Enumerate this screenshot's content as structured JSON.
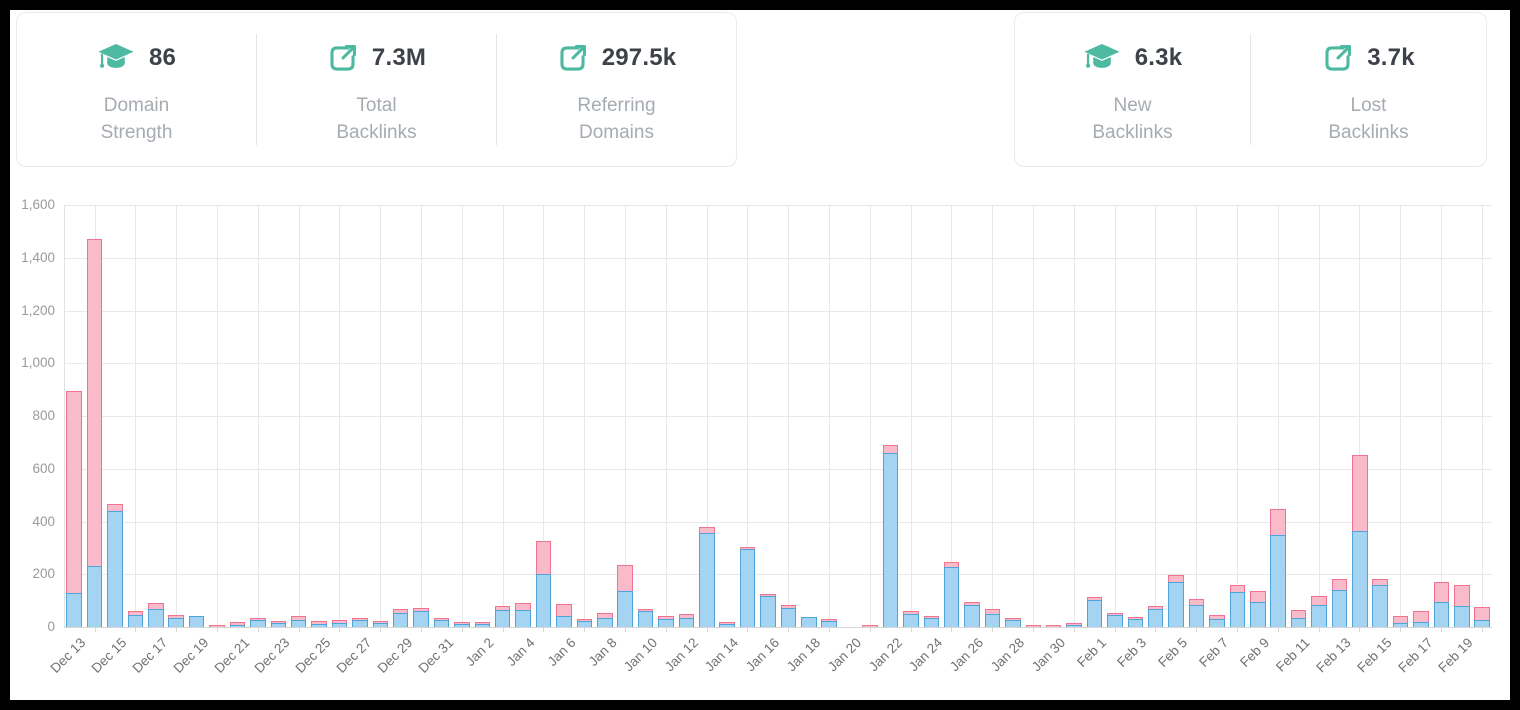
{
  "stats": {
    "groups": [
      {
        "items": [
          {
            "icon": "graduation-cap",
            "value": "86",
            "label": "Domain Strength"
          },
          {
            "icon": "external-link",
            "value": "7.3M",
            "label": "Total Backlinks"
          },
          {
            "icon": "external-link",
            "value": "297.5k",
            "label": "Referring Domains"
          }
        ]
      },
      {
        "items": [
          {
            "icon": "graduation-cap",
            "value": "6.3k",
            "label": "New Backlinks"
          },
          {
            "icon": "external-link",
            "value": "3.7k",
            "label": "Lost Backlinks"
          }
        ]
      }
    ]
  },
  "colors": {
    "accent_teal": "#4cb9a0",
    "stat_number": "#3d4249",
    "stat_label": "#a6abb2",
    "new_fill": "#a5d3f2",
    "new_border": "#4fa5da",
    "lost_fill": "#f9bbca",
    "lost_border": "#f0738f",
    "grid": "#e8e8e8",
    "axis": "#d7d7d7",
    "y_tick_text": "#9a9a9a",
    "x_tick_text": "#717171"
  },
  "chart_data": {
    "type": "bar",
    "stacked": true,
    "title": "",
    "xlabel": "",
    "ylabel": "",
    "ylim": [
      0,
      1600
    ],
    "ytick_step": 200,
    "y_tick_labels": [
      "0",
      "200",
      "400",
      "600",
      "800",
      "1,000",
      "1,200",
      "1,400",
      "1,600"
    ],
    "grid": "on",
    "legend_position": "none",
    "x_label_every": 2,
    "x_tick_labels": [
      "Dec 13",
      "Dec 15",
      "Dec 17",
      "Dec 19",
      "Dec 21",
      "Dec 23",
      "Dec 25",
      "Dec 27",
      "Dec 29",
      "Dec 31",
      "Jan 2",
      "Jan 4",
      "Jan 6",
      "Jan 8",
      "Jan 10",
      "Jan 12",
      "Jan 14",
      "Jan 16",
      "Jan 18",
      "Jan 20",
      "Jan 22",
      "Jan 24",
      "Jan 26",
      "Jan 28",
      "Jan 30",
      "Feb 1",
      "Feb 3",
      "Feb 5",
      "Feb 7",
      "Feb 9",
      "Feb 11",
      "Feb 13",
      "Feb 15",
      "Feb 17",
      "Feb 19"
    ],
    "categories": [
      "Dec 13",
      "Dec 14",
      "Dec 15",
      "Dec 16",
      "Dec 17",
      "Dec 18",
      "Dec 19",
      "Dec 20",
      "Dec 21",
      "Dec 22",
      "Dec 23",
      "Dec 24",
      "Dec 25",
      "Dec 26",
      "Dec 27",
      "Dec 28",
      "Dec 29",
      "Dec 30",
      "Dec 31",
      "Jan 1",
      "Jan 2",
      "Jan 3",
      "Jan 4",
      "Jan 5",
      "Jan 6",
      "Jan 7",
      "Jan 8",
      "Jan 9",
      "Jan 10",
      "Jan 11",
      "Jan 12",
      "Jan 13",
      "Jan 14",
      "Jan 15",
      "Jan 16",
      "Jan 17",
      "Jan 18",
      "Jan 19",
      "Jan 20",
      "Jan 21",
      "Jan 22",
      "Jan 23",
      "Jan 24",
      "Jan 25",
      "Jan 26",
      "Jan 27",
      "Jan 28",
      "Jan 29",
      "Jan 30",
      "Jan 31",
      "Feb 1",
      "Feb 2",
      "Feb 3",
      "Feb 4",
      "Feb 5",
      "Feb 6",
      "Feb 7",
      "Feb 8",
      "Feb 9",
      "Feb 10",
      "Feb 11",
      "Feb 12",
      "Feb 13",
      "Feb 14",
      "Feb 15",
      "Feb 16",
      "Feb 17",
      "Feb 18",
      "Feb 19",
      "Feb 20"
    ],
    "series": [
      {
        "name": "New Backlinks",
        "color": "#a5d3f2",
        "values": [
          130,
          230,
          440,
          45,
          70,
          35,
          42,
          0,
          8,
          25,
          14,
          28,
          13,
          16,
          25,
          17,
          54,
          60,
          26,
          13,
          13,
          64,
          66,
          200,
          42,
          22,
          36,
          135,
          62,
          30,
          36,
          356,
          12,
          295,
          117,
          71,
          39,
          22,
          0,
          0,
          660,
          50,
          33,
          226,
          85,
          51,
          28,
          0,
          0,
          8,
          104,
          45,
          32,
          68,
          170,
          83,
          29,
          132,
          93,
          349,
          35,
          84,
          139,
          364,
          158,
          14,
          18,
          94,
          81,
          25
        ]
      },
      {
        "name": "Lost Backlinks",
        "color": "#f9bbca",
        "values": [
          765,
          1240,
          25,
          17,
          20,
          12,
          0,
          5,
          12,
          10,
          5,
          15,
          8,
          12,
          8,
          5,
          14,
          14,
          8,
          6,
          3,
          14,
          24,
          125,
          46,
          6,
          19,
          100,
          4,
          12,
          14,
          22,
          3,
          5,
          5,
          13,
          0,
          3,
          0,
          4,
          30,
          11,
          6,
          21,
          8,
          19,
          7,
          4,
          4,
          8,
          10,
          8,
          6,
          12,
          26,
          25,
          16,
          29,
          43,
          98,
          29,
          35,
          44,
          289,
          25,
          28,
          42,
          76,
          77,
          50
        ]
      }
    ]
  }
}
